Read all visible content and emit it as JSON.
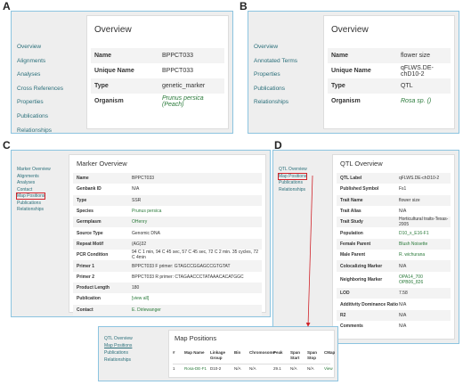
{
  "panels": [
    {
      "label": "A",
      "sidebar": [
        "Overview",
        "Alignments",
        "Analyses",
        "Cross References",
        "Properties",
        "Publications",
        "Relationships"
      ],
      "title": "Overview",
      "rows": [
        [
          "Name",
          "BPPCT033"
        ],
        [
          "Unique Name",
          "BPPCT033"
        ],
        [
          "Type",
          "genetic_marker"
        ],
        [
          "Organism",
          "Prunus persica (Peach)"
        ]
      ]
    },
    {
      "label": "B",
      "sidebar": [
        "Overview",
        "Annotated Terms",
        "Properties",
        "Publications",
        "Relationships"
      ],
      "title": "Overview",
      "rows": [
        [
          "Name",
          "flower size"
        ],
        [
          "Unique Name",
          "qFLWS.DE-chD10-2"
        ],
        [
          "Type",
          "QTL"
        ],
        [
          "Organism",
          "Rosa sp. ()"
        ]
      ]
    },
    {
      "label": "C",
      "sidebar": [
        "Marker Overview",
        "Alignments",
        "Analyses",
        "Contact",
        "Map Positions",
        "Publications",
        "Relationships"
      ],
      "title": "Marker Overview",
      "rows": [
        [
          "Name",
          "BPPCT033"
        ],
        [
          "Genbank ID",
          "N/A"
        ],
        [
          "Type",
          "SSR"
        ],
        [
          "Species",
          "Prunus persica"
        ],
        [
          "Germplasm",
          "OHenry"
        ],
        [
          "Source Type",
          "Genomic DNA"
        ],
        [
          "Repeat Motif",
          "(AG)32"
        ],
        [
          "PCR Condition",
          "94 C 1 min, 94 C 45 sec, 57 C 45 sec, 72 C 2 min. 35 cycles, 72 C 4min"
        ],
        [
          "Primer 1",
          "BPPCT033 F primer: GTAGCCGGAGCCGTGTAT"
        ],
        [
          "Primer 2",
          "BPPCT033 R primer: CTAGAACCCTATAAACACATGGC"
        ],
        [
          "Product Length",
          "180"
        ],
        [
          "Publication",
          "[view all]"
        ],
        [
          "Contact",
          "E. Dirlewanger"
        ]
      ]
    },
    {
      "label": "D",
      "sidebar": [
        "QTL Overview",
        "Map Positions",
        "Publications",
        "Relationships"
      ],
      "title": "QTL Overview",
      "rows": [
        [
          "QTL Label",
          "qFLWS.DE-chD10-2"
        ],
        [
          "Published Symbol",
          "Fs1"
        ],
        [
          "Trait Name",
          "flower size"
        ],
        [
          "Trait Alias",
          "N/A"
        ],
        [
          "Trait Study",
          "Horticultural traits-Texas-2005"
        ],
        [
          "Population",
          "D10_x_E16-F1"
        ],
        [
          "Female Parent",
          "Blush Noisette"
        ],
        [
          "Male Parent",
          "R. wichurana"
        ],
        [
          "Colocalizing Marker",
          "N/A"
        ],
        [
          "Neighboring Marker",
          [
            "OPA14_700",
            "OPB06_826"
          ]
        ],
        [
          "LOD",
          "7.58"
        ],
        [
          "Additivity Dominance Ratio",
          "N/A"
        ],
        [
          "R2",
          "N/A"
        ],
        [
          "Comments",
          "N/A"
        ]
      ]
    }
  ],
  "inset": {
    "sidebar": [
      "QTL Overview",
      "Map Positions",
      "Publications",
      "Relationships"
    ],
    "title": "Map Positions",
    "headers": [
      "#",
      "Map Name",
      "Linkage Group",
      "Bin",
      "Chromosome",
      "Peak",
      "Span Start",
      "Span Stop",
      "CMap"
    ],
    "row": [
      "1",
      "Rosa-DE-F1",
      "D10-2",
      "N/A",
      "N/A",
      "29.1",
      "N/A",
      "N/A",
      "View"
    ]
  }
}
